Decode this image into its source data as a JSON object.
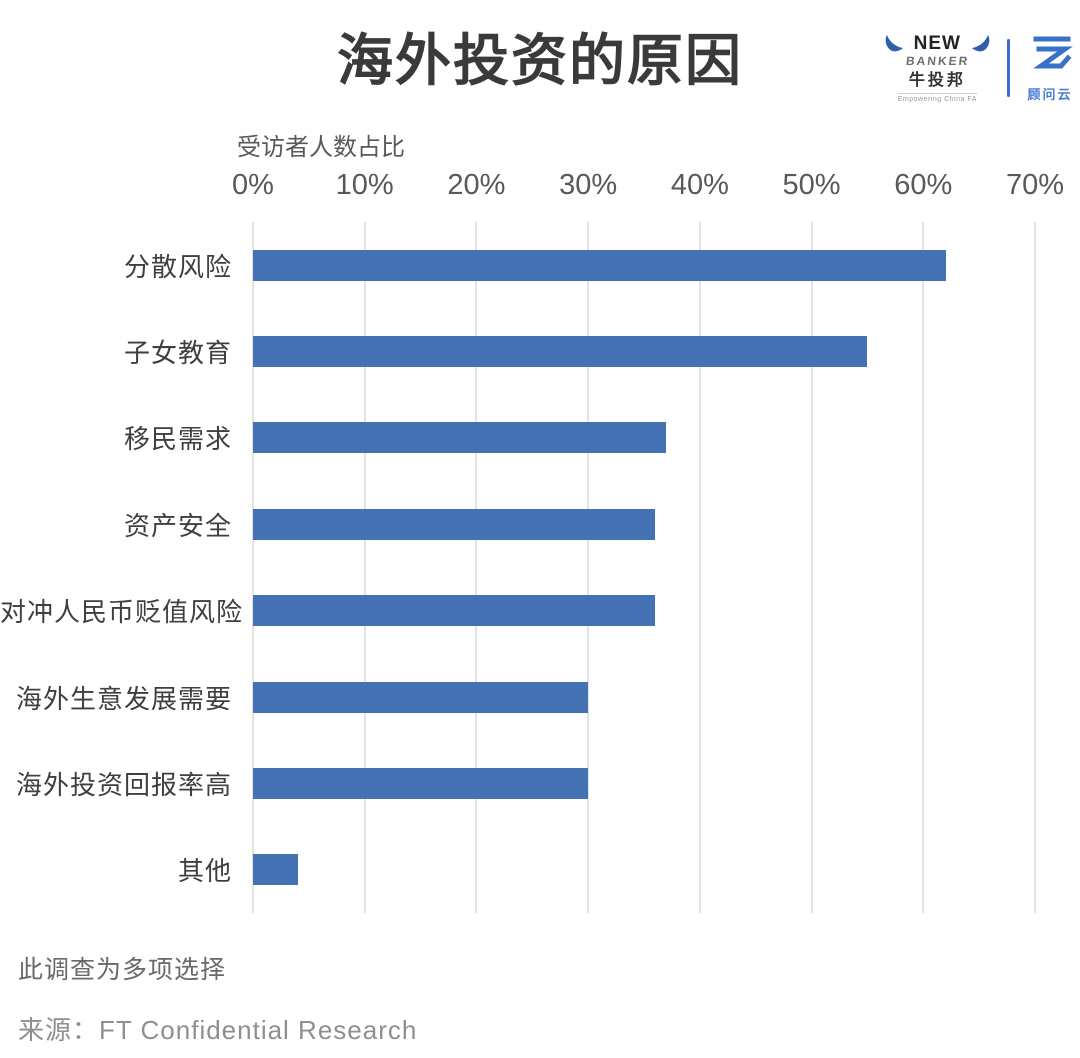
{
  "header": {
    "brand": {
      "newbanker": {
        "line1": "NEW",
        "line2": "BANKER",
        "name": "牛投邦",
        "tagline": "Empowering China FA"
      },
      "guwenyun": {
        "name": "顾问云"
      }
    }
  },
  "chart_data": {
    "type": "bar",
    "orientation": "horizontal",
    "title": "海外投资的原因",
    "axis_label": "受访者人数占比",
    "categories": [
      "分散风险",
      "子女教育",
      "移民需求",
      "资产安全",
      "对冲人民币贬值风险",
      "海外生意发展需要",
      "海外投资回报率高",
      "其他"
    ],
    "values": [
      62,
      55,
      37,
      36,
      36,
      30,
      30,
      4
    ],
    "unit": "%",
    "xlim": [
      0,
      70
    ],
    "ticks": [
      "0%",
      "10%",
      "20%",
      "30%",
      "40%",
      "50%",
      "60%",
      "70%"
    ],
    "grid": "vertical",
    "legend": "none",
    "bar_color": "#4572b5",
    "notes": [
      "此调查为多项选择",
      "来源：FT Confidential Research"
    ]
  }
}
